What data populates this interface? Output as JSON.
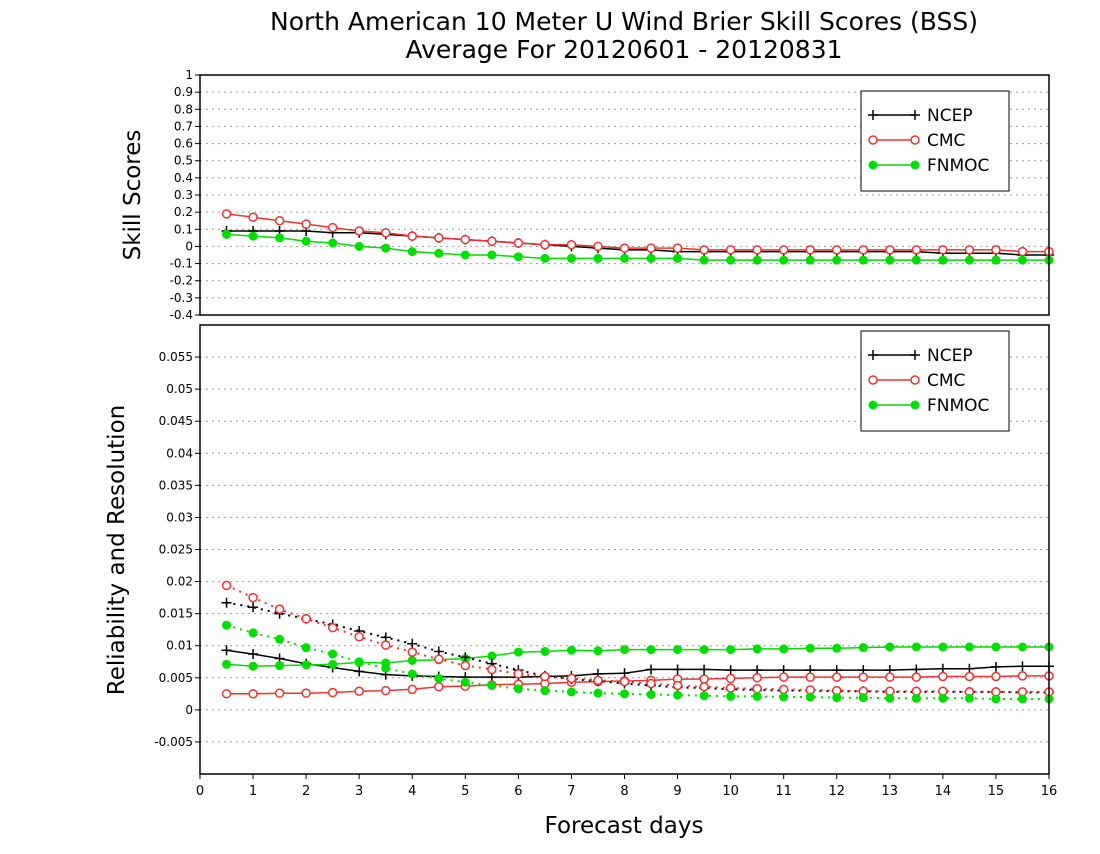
{
  "chart_data": [
    {
      "type": "line",
      "title": "North American 10 Meter U Wind Brier Skill Scores (BSS)",
      "subtitle": "Average For 20120601 - 20120831",
      "ylabel": "Skill Scores",
      "xlabel": "",
      "ylim": [
        -0.4,
        1
      ],
      "xlim": [
        0,
        16
      ],
      "yticks": [
        "-0.4",
        "-0.3",
        "-0.2",
        "-0.1",
        "0",
        "0.1",
        "0.2",
        "0.3",
        "0.4",
        "0.5",
        "0.6",
        "0.7",
        "0.8",
        "0.9",
        "1"
      ],
      "grid": true,
      "legend_position": "top-right",
      "x": [
        0.5,
        1,
        1.5,
        2,
        2.5,
        3,
        3.5,
        4,
        4.5,
        5,
        5.5,
        6,
        6.5,
        7,
        7.5,
        8,
        8.5,
        9,
        9.5,
        10,
        10.5,
        11,
        11.5,
        12,
        12.5,
        13,
        13.5,
        14,
        14.5,
        15,
        15.5,
        16
      ],
      "series": [
        {
          "name": "NCEP",
          "color": "#000000",
          "marker": "plus",
          "style": "solid",
          "values": [
            0.09,
            0.09,
            0.09,
            0.09,
            0.08,
            0.08,
            0.07,
            0.06,
            0.05,
            0.04,
            0.03,
            0.02,
            0.01,
            0.0,
            -0.01,
            -0.02,
            -0.02,
            -0.03,
            -0.03,
            -0.03,
            -0.03,
            -0.03,
            -0.03,
            -0.03,
            -0.03,
            -0.03,
            -0.03,
            -0.04,
            -0.04,
            -0.04,
            -0.05,
            -0.05
          ]
        },
        {
          "name": "CMC",
          "color": "#ee3333",
          "marker": "open-circle",
          "style": "solid",
          "values": [
            0.19,
            0.17,
            0.15,
            0.13,
            0.11,
            0.09,
            0.08,
            0.06,
            0.05,
            0.04,
            0.03,
            0.02,
            0.01,
            0.01,
            0.0,
            -0.01,
            -0.01,
            -0.01,
            -0.02,
            -0.02,
            -0.02,
            -0.02,
            -0.02,
            -0.02,
            -0.02,
            -0.02,
            -0.02,
            -0.02,
            -0.02,
            -0.02,
            -0.03,
            -0.03
          ]
        },
        {
          "name": "FNMOC",
          "color": "#00dd00",
          "marker": "filled-circle",
          "style": "solid",
          "values": [
            0.07,
            0.06,
            0.05,
            0.03,
            0.02,
            0.0,
            -0.01,
            -0.03,
            -0.04,
            -0.05,
            -0.05,
            -0.06,
            -0.07,
            -0.07,
            -0.07,
            -0.07,
            -0.07,
            -0.07,
            -0.08,
            -0.08,
            -0.08,
            -0.08,
            -0.08,
            -0.08,
            -0.08,
            -0.08,
            -0.08,
            -0.08,
            -0.08,
            -0.08,
            -0.08,
            -0.08
          ]
        }
      ]
    },
    {
      "type": "line",
      "title": "",
      "ylabel": "Reliability and Resolution",
      "xlabel": "Forecast days",
      "ylim": [
        -0.01,
        0.06
      ],
      "xlim": [
        0,
        16
      ],
      "yticks": [
        "-0.005",
        "0",
        "0.005",
        "0.01",
        "0.015",
        "0.02",
        "0.025",
        "0.03",
        "0.035",
        "0.04",
        "0.045",
        "0.05",
        "0.055"
      ],
      "xticks": [
        "0",
        "1",
        "2",
        "3",
        "4",
        "5",
        "6",
        "7",
        "8",
        "9",
        "10",
        "11",
        "12",
        "13",
        "14",
        "15",
        "16"
      ],
      "grid": true,
      "legend_position": "top-right",
      "x": [
        0.5,
        1,
        1.5,
        2,
        2.5,
        3,
        3.5,
        4,
        4.5,
        5,
        5.5,
        6,
        6.5,
        7,
        7.5,
        8,
        8.5,
        9,
        9.5,
        10,
        10.5,
        11,
        11.5,
        12,
        12.5,
        13,
        13.5,
        14,
        14.5,
        15,
        15.5,
        16
      ],
      "series": [
        {
          "name": "NCEP",
          "color": "#000000",
          "marker": "plus",
          "style": "solid",
          "values": [
            0.0093,
            0.0087,
            0.008,
            0.0072,
            0.0066,
            0.006,
            0.0055,
            0.0053,
            0.0052,
            0.0051,
            0.0051,
            0.0051,
            0.0052,
            0.0053,
            0.0056,
            0.0057,
            0.0063,
            0.0063,
            0.0063,
            0.0062,
            0.0062,
            0.0062,
            0.0062,
            0.0062,
            0.0062,
            0.0062,
            0.0063,
            0.0064,
            0.0064,
            0.0067,
            0.0068,
            0.0068
          ]
        },
        {
          "name": "CMC",
          "color": "#ee3333",
          "marker": "open-circle",
          "style": "solid",
          "values": [
            0.0025,
            0.0025,
            0.0026,
            0.0026,
            0.0027,
            0.0029,
            0.003,
            0.0032,
            0.0036,
            0.0037,
            0.0039,
            0.004,
            0.0041,
            0.0043,
            0.0044,
            0.0045,
            0.0046,
            0.0048,
            0.0048,
            0.0049,
            0.005,
            0.0051,
            0.0051,
            0.0051,
            0.0051,
            0.0051,
            0.0051,
            0.0052,
            0.0052,
            0.0052,
            0.0053,
            0.0053
          ]
        },
        {
          "name": "FNMOC",
          "color": "#00dd00",
          "marker": "filled-circle",
          "style": "solid",
          "values": [
            0.0071,
            0.0068,
            0.0069,
            0.007,
            0.0071,
            0.0074,
            0.0073,
            0.0077,
            0.0078,
            0.008,
            0.0084,
            0.009,
            0.0091,
            0.0093,
            0.0092,
            0.0094,
            0.0094,
            0.0094,
            0.0094,
            0.0094,
            0.0095,
            0.0095,
            0.0096,
            0.0096,
            0.0097,
            0.0098,
            0.0098,
            0.0098,
            0.0098,
            0.0098,
            0.0098,
            0.0098
          ]
        },
        {
          "name": "",
          "color": "#000000",
          "marker": "plus",
          "style": "dotted",
          "values": [
            0.0167,
            0.016,
            0.015,
            0.0142,
            0.0133,
            0.0123,
            0.0113,
            0.0103,
            0.0091,
            0.0082,
            0.0072,
            0.0062,
            0.0053,
            0.0048,
            0.0045,
            0.0041,
            0.0038,
            0.0035,
            0.0034,
            0.0032,
            0.0031,
            0.003,
            0.003,
            0.0029,
            0.0029,
            0.0028,
            0.0028,
            0.0028,
            0.0028,
            0.0028,
            0.0027,
            0.0027
          ]
        },
        {
          "name": "",
          "color": "#ee3333",
          "marker": "open-circle",
          "style": "dotted",
          "values": [
            0.0194,
            0.0175,
            0.0157,
            0.0142,
            0.0128,
            0.0114,
            0.0101,
            0.009,
            0.0079,
            0.0069,
            0.0063,
            0.0056,
            0.0052,
            0.0049,
            0.0046,
            0.0044,
            0.0041,
            0.0038,
            0.0036,
            0.0034,
            0.0033,
            0.0032,
            0.0031,
            0.003,
            0.0029,
            0.0029,
            0.0029,
            0.0029,
            0.0028,
            0.0028,
            0.0028,
            0.0028
          ]
        },
        {
          "name": "",
          "color": "#00dd00",
          "marker": "filled-circle",
          "style": "dotted",
          "values": [
            0.0132,
            0.012,
            0.011,
            0.0097,
            0.0087,
            0.0075,
            0.0065,
            0.0056,
            0.0049,
            0.0043,
            0.0038,
            0.0033,
            0.003,
            0.0028,
            0.0026,
            0.0025,
            0.0024,
            0.0023,
            0.0022,
            0.0021,
            0.0021,
            0.002,
            0.002,
            0.0019,
            0.0019,
            0.0018,
            0.0018,
            0.0018,
            0.0018,
            0.0017,
            0.0017,
            0.0017
          ]
        }
      ]
    }
  ]
}
